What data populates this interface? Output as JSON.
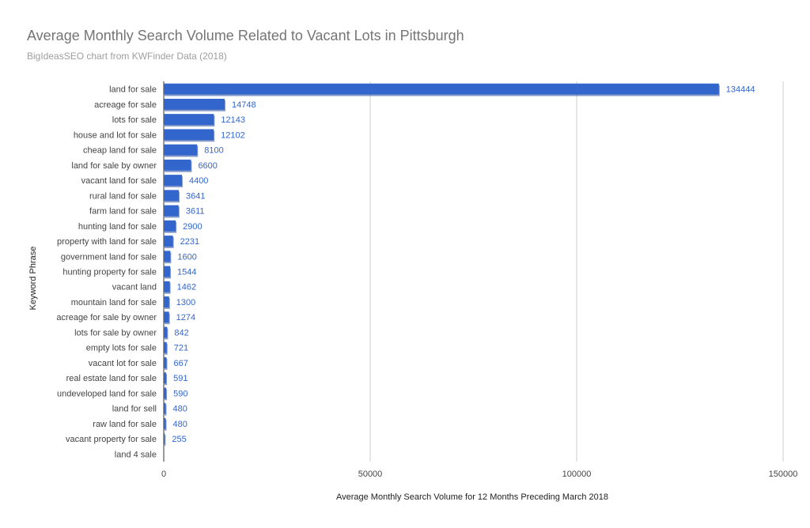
{
  "chart_data": {
    "type": "bar",
    "orientation": "horizontal",
    "title": "Average Monthly Search Volume Related to Vacant Lots in Pittsburgh",
    "subtitle": "BigIdeasSEO chart from KWFinder Data (2018)",
    "xlabel": "Average Monthly Search Volume for 12 Months Preceding March 2018",
    "ylabel": "Keyword Phrase",
    "xlim": [
      0,
      150000
    ],
    "x_ticks": [
      0,
      50000,
      100000,
      150000
    ],
    "x_tick_labels": [
      "0",
      "50000",
      "100000",
      "150000"
    ],
    "grid": true,
    "legend": "none",
    "bar_color": "#3366cc",
    "label_color": "#3366cc",
    "categories": [
      "land for sale",
      "acreage for sale",
      "lots for sale",
      "house and lot for sale",
      "cheap land for sale",
      "land for sale by owner",
      "vacant land for sale",
      "rural land for sale",
      "farm land for sale",
      "hunting land for sale",
      "property with land for sale",
      "government land for sale",
      "hunting property for sale",
      "vacant land",
      "mountain land for sale",
      "acreage for sale by owner",
      "lots for sale by owner",
      "empty lots for sale",
      "vacant lot for sale",
      "real estate land for sale",
      "undeveloped land for sale",
      "land for sell",
      "raw land for sale",
      "vacant property for sale",
      "land 4 sale"
    ],
    "values": [
      134444,
      14748,
      12143,
      12102,
      8100,
      6600,
      4400,
      3641,
      3611,
      2900,
      2231,
      1600,
      1544,
      1462,
      1300,
      1274,
      842,
      721,
      667,
      591,
      590,
      480,
      480,
      255,
      0
    ],
    "value_labels": [
      "134444",
      "14748",
      "12143",
      "12102",
      "8100",
      "6600",
      "4400",
      "3641",
      "3611",
      "2900",
      "2231",
      "1600",
      "1544",
      "1462",
      "1300",
      "1274",
      "842",
      "721",
      "667",
      "591",
      "590",
      "480",
      "480",
      "255",
      ""
    ]
  }
}
